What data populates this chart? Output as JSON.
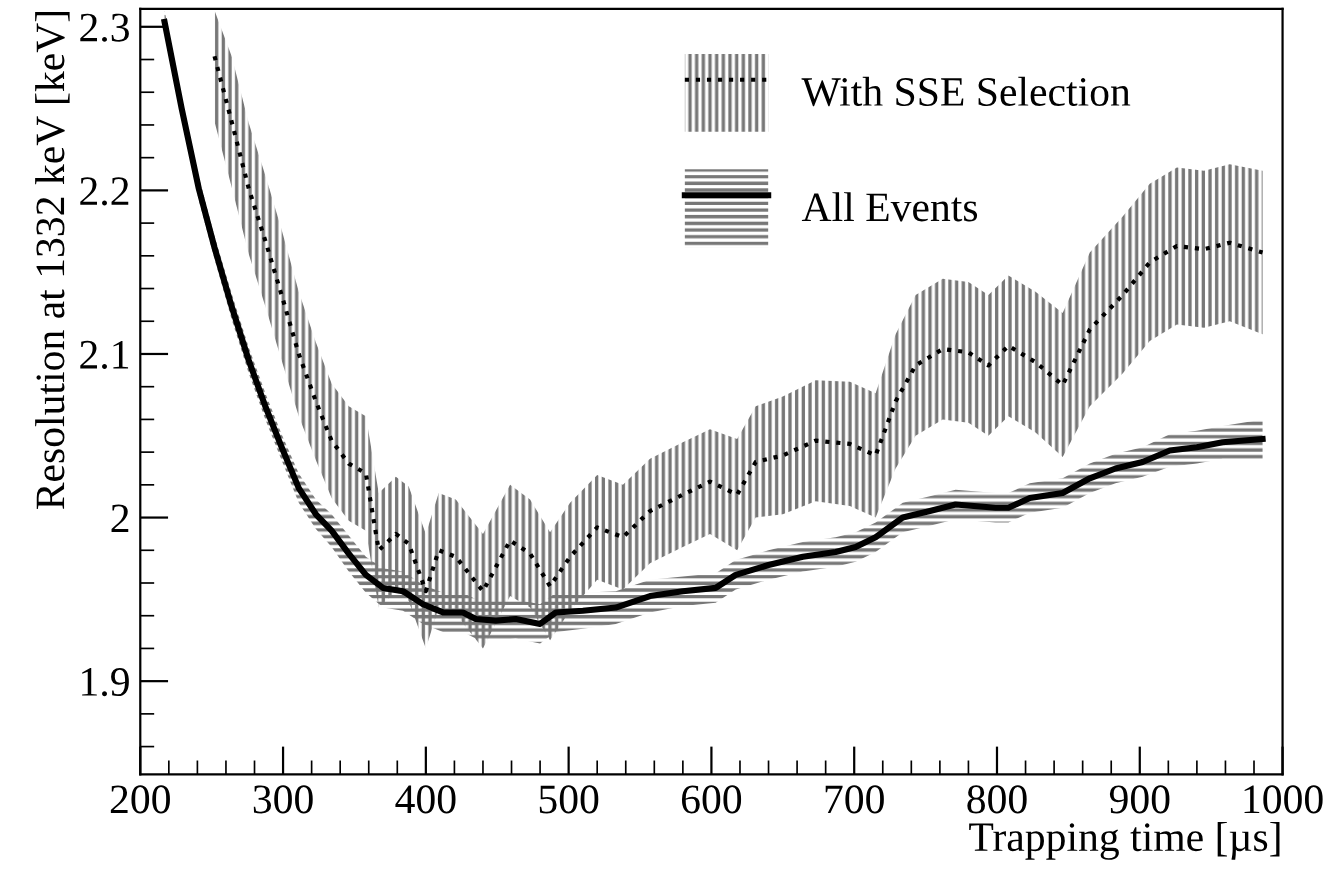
{
  "chart_data": {
    "type": "line",
    "xlabel": "Trapping time [µs]",
    "ylabel": "Resolution at 1332 keV [keV]",
    "xlim": [
      200,
      1000
    ],
    "ylim": [
      1.843,
      2.311
    ],
    "xticks": [
      200,
      300,
      400,
      500,
      600,
      700,
      800,
      900,
      1000
    ],
    "yticks": [
      1.9,
      {
        "value": 2,
        "label": "2"
      },
      2.1,
      2.2,
      2.3
    ],
    "grid": false,
    "legend": "top right",
    "marker": "none",
    "series": [
      {
        "name": "With SSE Selection",
        "color": "#000000",
        "line_style": "dotted",
        "x": [
          252,
          264,
          276,
          288,
          299,
          311,
          323,
          334,
          346,
          358,
          367,
          379,
          388,
          400,
          409,
          421,
          440,
          459,
          473,
          487,
          501,
          520,
          538,
          557,
          580,
          599,
          618,
          631,
          650,
          673,
          697,
          715,
          729,
          743,
          762,
          780,
          794,
          808,
          827,
          846,
          865,
          888,
          907,
          926,
          945,
          963,
          986
        ],
        "values": [
          2.282,
          2.242,
          2.201,
          2.168,
          2.136,
          2.1,
          2.071,
          2.047,
          2.033,
          2.027,
          1.98,
          1.99,
          1.984,
          1.955,
          1.98,
          1.976,
          1.955,
          1.986,
          1.978,
          1.958,
          1.976,
          1.994,
          1.988,
          2.004,
          2.014,
          2.022,
          2.014,
          2.034,
          2.038,
          2.047,
          2.045,
          2.038,
          2.071,
          2.093,
          2.103,
          2.101,
          2.093,
          2.105,
          2.095,
          2.081,
          2.115,
          2.136,
          2.156,
          2.166,
          2.164,
          2.168,
          2.162
        ],
        "lower": [
          2.242,
          2.202,
          2.161,
          2.128,
          2.096,
          2.062,
          2.035,
          2.012,
          1.998,
          1.992,
          1.945,
          1.955,
          1.949,
          1.92,
          1.945,
          1.941,
          1.92,
          1.952,
          1.945,
          1.925,
          1.943,
          1.962,
          1.956,
          1.972,
          1.982,
          1.99,
          1.98,
          2.0,
          2.002,
          2.01,
          2.007,
          2.0,
          2.03,
          2.05,
          2.06,
          2.058,
          2.05,
          2.062,
          2.052,
          2.037,
          2.068,
          2.088,
          2.108,
          2.118,
          2.116,
          2.12,
          2.112
        ],
        "upper": [
          2.31,
          2.282,
          2.241,
          2.208,
          2.176,
          2.138,
          2.107,
          2.082,
          2.068,
          2.062,
          2.015,
          2.025,
          2.019,
          1.99,
          2.015,
          2.011,
          1.99,
          2.02,
          2.011,
          1.991,
          2.009,
          2.026,
          2.02,
          2.036,
          2.046,
          2.054,
          2.048,
          2.068,
          2.074,
          2.084,
          2.083,
          2.076,
          2.112,
          2.136,
          2.146,
          2.144,
          2.136,
          2.148,
          2.138,
          2.125,
          2.162,
          2.184,
          2.204,
          2.214,
          2.212,
          2.216,
          2.212
        ]
      },
      {
        "name": "All Events",
        "color": "#000000",
        "line_style": "solid",
        "x": [
          217,
          229,
          241,
          252,
          264,
          276,
          288,
          299,
          311,
          323,
          334,
          346,
          358,
          370,
          384,
          398,
          412,
          426,
          435,
          449,
          463,
          480,
          491,
          510,
          533,
          557,
          580,
          603,
          617,
          640,
          664,
          687,
          701,
          715,
          734,
          753,
          771,
          799,
          808,
          823,
          846,
          865,
          883,
          902,
          921,
          940,
          958,
          986
        ],
        "values": [
          2.303,
          2.25,
          2.201,
          2.165,
          2.129,
          2.096,
          2.067,
          2.043,
          2.018,
          2.002,
          1.992,
          1.978,
          1.965,
          1.957,
          1.955,
          1.947,
          1.942,
          1.942,
          1.938,
          1.937,
          1.938,
          1.935,
          1.942,
          1.943,
          1.945,
          1.952,
          1.955,
          1.957,
          1.965,
          1.971,
          1.976,
          1.979,
          1.982,
          1.988,
          2.0,
          2.004,
          2.008,
          2.006,
          2.006,
          2.012,
          2.015,
          2.024,
          2.03,
          2.034,
          2.041,
          2.043,
          2.046,
          2.048
        ],
        "lower": [
          2.296,
          2.243,
          2.194,
          2.158,
          2.121,
          2.088,
          2.059,
          2.035,
          2.009,
          1.993,
          1.982,
          1.967,
          1.954,
          1.945,
          1.943,
          1.935,
          1.93,
          1.93,
          1.926,
          1.925,
          1.926,
          1.923,
          1.93,
          1.932,
          1.935,
          1.942,
          1.946,
          1.948,
          1.956,
          1.962,
          1.967,
          1.97,
          1.973,
          1.979,
          1.991,
          1.995,
          1.999,
          1.997,
          1.997,
          2.003,
          2.006,
          2.015,
          2.021,
          2.025,
          2.031,
          2.033,
          2.036,
          2.036
        ],
        "upper": [
          2.31,
          2.257,
          2.208,
          2.172,
          2.137,
          2.104,
          2.075,
          2.051,
          2.027,
          2.011,
          2.002,
          1.989,
          1.976,
          1.969,
          1.967,
          1.959,
          1.954,
          1.954,
          1.95,
          1.949,
          1.95,
          1.947,
          1.954,
          1.954,
          1.955,
          1.962,
          1.964,
          1.966,
          1.974,
          1.98,
          1.985,
          1.988,
          1.991,
          1.997,
          2.009,
          2.013,
          2.017,
          2.015,
          2.015,
          2.021,
          2.024,
          2.033,
          2.039,
          2.043,
          2.051,
          2.053,
          2.056,
          2.06
        ]
      }
    ]
  }
}
